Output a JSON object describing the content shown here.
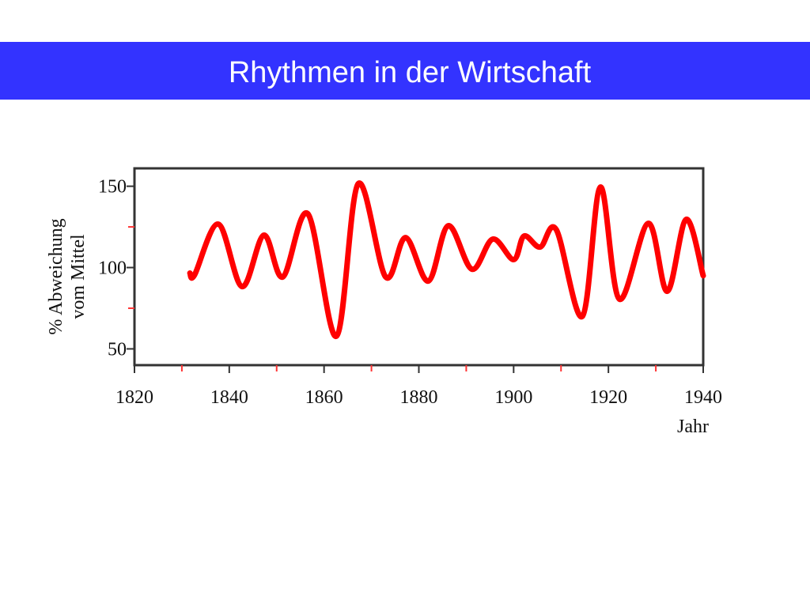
{
  "chart_data": {
    "type": "line",
    "title": "Rhythmen in der Wirtschaft",
    "x_label": "Jahr",
    "y_label": [
      "% Abweichung",
      "vom Mittel"
    ],
    "xlim": [
      1820,
      1940
    ],
    "xticks": [
      1820,
      1840,
      1860,
      1880,
      1900,
      1920,
      1940
    ],
    "xminorticks": [
      1830,
      1850,
      1870,
      1890,
      1910,
      1930
    ],
    "ylim": [
      40,
      161
    ],
    "yticks": [
      50,
      100,
      150
    ],
    "yminorticks": [
      75,
      125
    ],
    "series": [
      {
        "name": "Abweichung",
        "color": "#ff0000",
        "x": [
          1831.7,
          1832.7,
          1837.7,
          1842.7,
          1847.3,
          1851.3,
          1856.6,
          1862.6,
          1867.2,
          1873,
          1877.2,
          1882,
          1886.2,
          1891.2,
          1895.6,
          1900,
          1902.2,
          1905.6,
          1909,
          1914.5,
          1918.3,
          1922.3,
          1928.4,
          1932.4,
          1936.4,
          1940
        ],
        "values": [
          96.6,
          95.6,
          126.7,
          88.3,
          119.9,
          94.2,
          133,
          57.8,
          151.5,
          94.2,
          118.4,
          91.7,
          125.7,
          99,
          117.5,
          104.9,
          119.4,
          112.6,
          123.3,
          70,
          149.5,
          80.6,
          127.2,
          85.4,
          129.6,
          95
        ]
      }
    ]
  }
}
